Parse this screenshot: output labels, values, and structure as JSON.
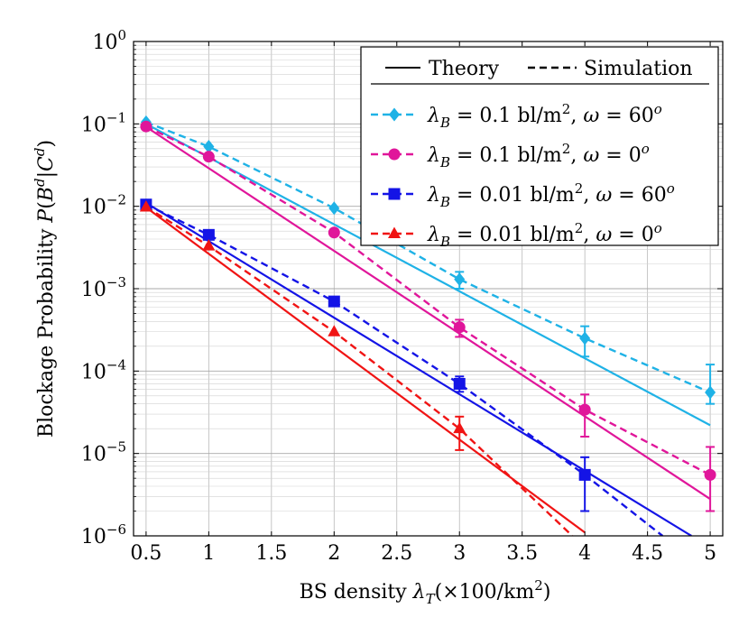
{
  "chart_data": {
    "type": "line",
    "title": "",
    "xlabel": "BS density λ_T(×100/km²)",
    "ylabel": "Blockage Probability P(B^d|C^d)",
    "xlim": [
      0.4,
      5.1
    ],
    "ylim": [
      1e-06,
      1
    ],
    "yscale": "log",
    "x_ticks": [
      0.5,
      1,
      1.5,
      2,
      2.5,
      3,
      3.5,
      4,
      4.5,
      5
    ],
    "x_tick_labels": [
      "0.5",
      "1",
      "1.5",
      "2",
      "2.5",
      "3",
      "3.5",
      "4",
      "4.5",
      "5"
    ],
    "y_tick_labels": [
      {
        "base": "10",
        "exp": "0"
      },
      {
        "base": "10",
        "exp": "−1"
      },
      {
        "base": "10",
        "exp": "−2"
      },
      {
        "base": "10",
        "exp": "−3"
      },
      {
        "base": "10",
        "exp": "−4"
      },
      {
        "base": "10",
        "exp": "−5"
      },
      {
        "base": "10",
        "exp": "−6"
      }
    ],
    "grid": true,
    "legend": {
      "position": "top-right",
      "theory_label": "Theory",
      "simulation_label": "Simulation",
      "entries": [
        "λB = 0.1 bl/m², ω = 60°",
        "λB = 0.1 bl/m², ω = 0°",
        "λB = 0.01 bl/m², ω = 60°",
        "λB = 0.01 bl/m², ω = 0°"
      ]
    },
    "series": [
      {
        "name": "λB = 0.1 bl/m², ω = 60°",
        "color": "#1fb2e6",
        "marker": "diamond",
        "theory": {
          "x": [
            0.5,
            5
          ],
          "y": [
            0.1,
            2.2e-05
          ]
        },
        "simulation": {
          "x": [
            0.5,
            1,
            2,
            3,
            4,
            5
          ],
          "y": [
            0.105,
            0.053,
            0.0095,
            0.0013,
            0.00025,
            5.5e-05
          ],
          "err_low": [
            null,
            null,
            null,
            0.001,
            0.00015,
            4e-05
          ],
          "err_high": [
            null,
            null,
            null,
            0.0016,
            0.00035,
            0.00012
          ]
        }
      },
      {
        "name": "λB = 0.1 bl/m², ω = 0°",
        "color": "#e0169a",
        "marker": "circle",
        "theory": {
          "x": [
            0.5,
            5
          ],
          "y": [
            0.092,
            2.8e-06
          ]
        },
        "simulation": {
          "x": [
            0.5,
            1,
            2,
            3,
            4,
            5
          ],
          "y": [
            0.093,
            0.04,
            0.0048,
            0.00034,
            3.4e-05,
            5.5e-06
          ],
          "err_low": [
            null,
            null,
            null,
            0.00026,
            1.6e-05,
            2e-06
          ],
          "err_high": [
            null,
            null,
            null,
            0.00042,
            5.2e-05,
            1.2e-05
          ]
        }
      },
      {
        "name": "λB = 0.01 bl/m², ω = 60°",
        "color": "#1414e6",
        "marker": "square",
        "theory": {
          "x": [
            0.5,
            4.85
          ],
          "y": [
            0.011,
            1e-06
          ]
        },
        "simulation": {
          "x": [
            0.5,
            1,
            2,
            3,
            4,
            4.62
          ],
          "y": [
            0.0105,
            0.0045,
            0.0007,
            7e-05,
            5.5e-06,
            1e-06
          ],
          "err_low": [
            null,
            null,
            null,
            5.6e-05,
            2e-06,
            null
          ],
          "err_high": [
            null,
            null,
            null,
            8.6e-05,
            9e-06,
            null
          ]
        }
      },
      {
        "name": "λB = 0.01 bl/m², ω = 0°",
        "color": "#f01414",
        "marker": "triangle",
        "theory": {
          "x": [
            0.5,
            4.0
          ],
          "y": [
            0.0097,
            1.1e-06
          ]
        },
        "simulation": {
          "x": [
            0.5,
            1,
            2,
            3,
            3.9
          ],
          "y": [
            0.0098,
            0.0033,
            0.0003,
            2e-05,
            1e-06
          ],
          "err_low": [
            null,
            null,
            null,
            1.1e-05,
            null
          ],
          "err_high": [
            null,
            null,
            null,
            2.8e-05,
            null
          ]
        }
      }
    ]
  }
}
